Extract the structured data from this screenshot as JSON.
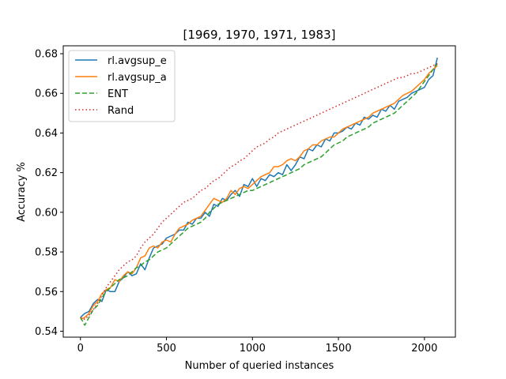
{
  "chart_data": {
    "type": "line",
    "title": "[1969, 1970, 1971, 1983]",
    "xlabel": "Number of queried instances",
    "ylabel": "Accuracy %",
    "xlim": [
      -100,
      2180
    ],
    "ylim": [
      0.537,
      0.684
    ],
    "xticks": [
      0,
      500,
      1000,
      1500,
      2000
    ],
    "yticks": [
      0.54,
      0.56,
      0.58,
      0.6,
      0.62,
      0.64,
      0.66,
      0.68
    ],
    "ytick_labels": [
      "0.54",
      "0.56",
      "0.58",
      "0.60",
      "0.62",
      "0.64",
      "0.66",
      "0.68"
    ],
    "grid": false,
    "legend_position": "top-left",
    "x": [
      0,
      25,
      50,
      75,
      100,
      125,
      150,
      175,
      200,
      225,
      250,
      275,
      300,
      325,
      350,
      375,
      400,
      425,
      450,
      475,
      500,
      525,
      550,
      575,
      600,
      625,
      650,
      675,
      700,
      725,
      750,
      775,
      800,
      825,
      850,
      875,
      900,
      925,
      950,
      975,
      1000,
      1025,
      1050,
      1075,
      1100,
      1125,
      1150,
      1175,
      1200,
      1225,
      1250,
      1275,
      1300,
      1325,
      1350,
      1375,
      1400,
      1425,
      1450,
      1475,
      1500,
      1525,
      1550,
      1575,
      1600,
      1625,
      1650,
      1675,
      1700,
      1725,
      1750,
      1775,
      1800,
      1825,
      1850,
      1875,
      1900,
      1925,
      1950,
      1975,
      2000,
      2025,
      2050,
      2075
    ],
    "series": [
      {
        "name": "rl.avgsup_e",
        "color": "#1f77b4",
        "dash": "solid",
        "values": [
          0.547,
          0.549,
          0.55,
          0.554,
          0.556,
          0.555,
          0.561,
          0.56,
          0.56,
          0.565,
          0.567,
          0.57,
          0.568,
          0.569,
          0.574,
          0.571,
          0.577,
          0.582,
          0.583,
          0.584,
          0.587,
          0.588,
          0.589,
          0.591,
          0.591,
          0.595,
          0.594,
          0.597,
          0.597,
          0.6,
          0.598,
          0.604,
          0.603,
          0.607,
          0.606,
          0.609,
          0.611,
          0.608,
          0.614,
          0.613,
          0.617,
          0.613,
          0.617,
          0.616,
          0.619,
          0.618,
          0.62,
          0.619,
          0.624,
          0.621,
          0.624,
          0.628,
          0.627,
          0.632,
          0.631,
          0.634,
          0.633,
          0.637,
          0.636,
          0.64,
          0.64,
          0.641,
          0.643,
          0.642,
          0.645,
          0.644,
          0.648,
          0.647,
          0.649,
          0.648,
          0.652,
          0.651,
          0.654,
          0.652,
          0.656,
          0.657,
          0.658,
          0.66,
          0.661,
          0.662,
          0.663,
          0.667,
          0.669,
          0.678
        ]
      },
      {
        "name": "rl.avgsup_a",
        "color": "#ff7f0e",
        "dash": "solid",
        "values": [
          0.546,
          0.547,
          0.549,
          0.553,
          0.555,
          0.559,
          0.561,
          0.562,
          0.566,
          0.565,
          0.568,
          0.57,
          0.569,
          0.572,
          0.577,
          0.578,
          0.582,
          0.583,
          0.582,
          0.585,
          0.586,
          0.585,
          0.589,
          0.592,
          0.593,
          0.594,
          0.596,
          0.597,
          0.598,
          0.601,
          0.604,
          0.607,
          0.606,
          0.605,
          0.607,
          0.611,
          0.609,
          0.612,
          0.613,
          0.612,
          0.614,
          0.616,
          0.618,
          0.619,
          0.62,
          0.623,
          0.623,
          0.624,
          0.626,
          0.627,
          0.626,
          0.628,
          0.631,
          0.632,
          0.634,
          0.634,
          0.636,
          0.637,
          0.638,
          0.638,
          0.64,
          0.642,
          0.643,
          0.644,
          0.645,
          0.646,
          0.647,
          0.648,
          0.65,
          0.651,
          0.652,
          0.653,
          0.654,
          0.655,
          0.657,
          0.659,
          0.66,
          0.661,
          0.663,
          0.665,
          0.667,
          0.67,
          0.672,
          0.674
        ]
      },
      {
        "name": "ENT",
        "color": "#2ca02c",
        "dash": "dashed",
        "values": [
          0.547,
          0.543,
          0.547,
          0.551,
          0.553,
          0.557,
          0.56,
          0.562,
          0.564,
          0.566,
          0.567,
          0.568,
          0.57,
          0.572,
          0.573,
          0.575,
          0.576,
          0.578,
          0.58,
          0.581,
          0.582,
          0.584,
          0.586,
          0.588,
          0.59,
          0.592,
          0.593,
          0.594,
          0.595,
          0.597,
          0.6,
          0.602,
          0.604,
          0.605,
          0.606,
          0.607,
          0.608,
          0.609,
          0.61,
          0.611,
          0.611,
          0.612,
          0.613,
          0.614,
          0.615,
          0.616,
          0.617,
          0.618,
          0.619,
          0.62,
          0.621,
          0.622,
          0.624,
          0.625,
          0.626,
          0.627,
          0.628,
          0.63,
          0.632,
          0.634,
          0.635,
          0.636,
          0.638,
          0.639,
          0.64,
          0.641,
          0.642,
          0.643,
          0.645,
          0.646,
          0.647,
          0.648,
          0.649,
          0.65,
          0.652,
          0.654,
          0.656,
          0.658,
          0.66,
          0.663,
          0.666,
          0.669,
          0.672,
          0.675
        ]
      },
      {
        "name": "Rand",
        "color": "#d62728",
        "dash": "dotted",
        "values": [
          0.547,
          0.546,
          0.548,
          0.551,
          0.554,
          0.558,
          0.562,
          0.565,
          0.568,
          0.571,
          0.573,
          0.575,
          0.576,
          0.578,
          0.582,
          0.585,
          0.587,
          0.589,
          0.592,
          0.595,
          0.597,
          0.599,
          0.601,
          0.603,
          0.605,
          0.606,
          0.607,
          0.609,
          0.611,
          0.612,
          0.614,
          0.616,
          0.617,
          0.619,
          0.621,
          0.623,
          0.624,
          0.626,
          0.627,
          0.629,
          0.631,
          0.633,
          0.634,
          0.635,
          0.637,
          0.638,
          0.64,
          0.641,
          0.642,
          0.643,
          0.644,
          0.645,
          0.646,
          0.647,
          0.648,
          0.649,
          0.65,
          0.651,
          0.652,
          0.653,
          0.654,
          0.655,
          0.656,
          0.657,
          0.658,
          0.659,
          0.66,
          0.661,
          0.662,
          0.663,
          0.664,
          0.665,
          0.666,
          0.667,
          0.668,
          0.668,
          0.669,
          0.67,
          0.67,
          0.671,
          0.672,
          0.673,
          0.674,
          0.675
        ]
      }
    ]
  }
}
